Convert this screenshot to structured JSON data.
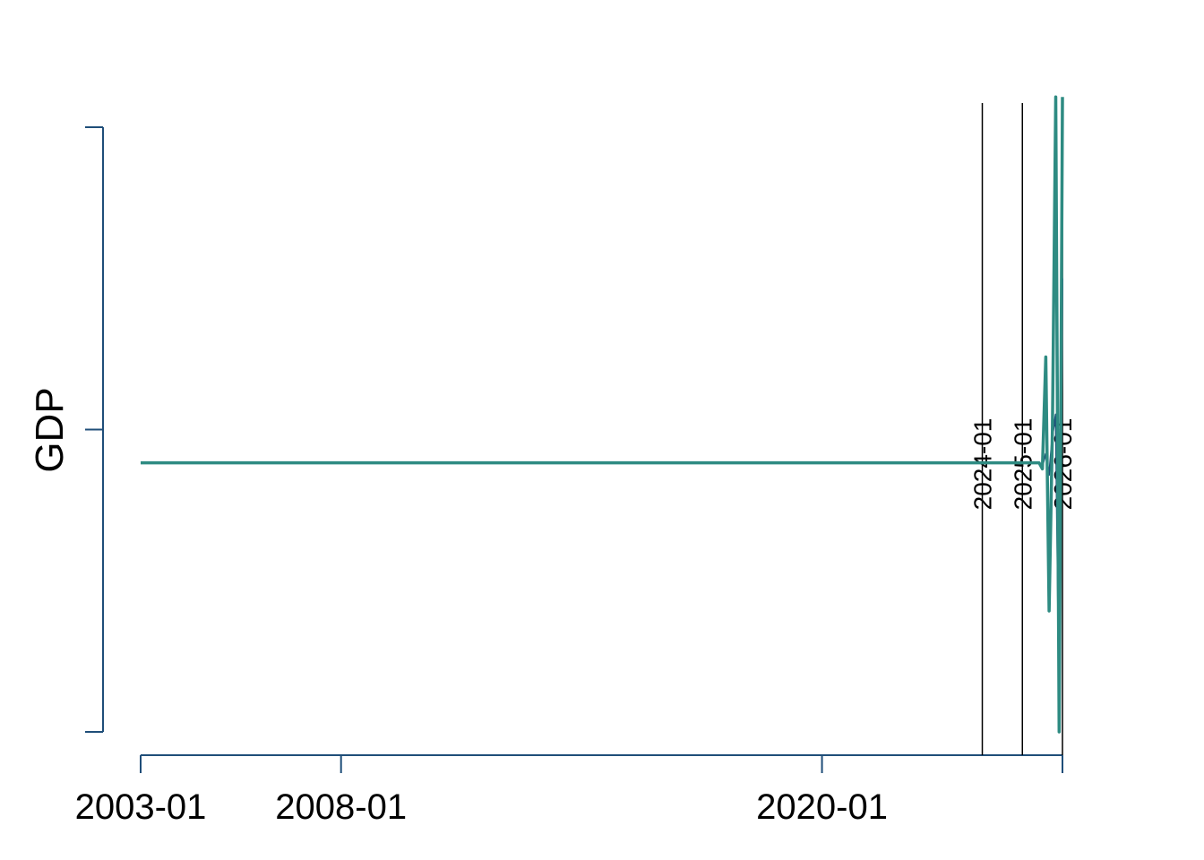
{
  "chart_data": {
    "type": "line",
    "title": "",
    "xlabel": "",
    "ylabel": "GDP",
    "x_axis_type": "date",
    "xlim": [
      "2003-01",
      "2026-01"
    ],
    "x_ticks": [
      "2003-01",
      "2008-01",
      "2020-01",
      "2026-01"
    ],
    "x_tick_labels": [
      "2003-01",
      "2008-01",
      "2020-01"
    ],
    "y_ticks": [
      -1,
      0,
      1
    ],
    "y_tick_labels": [],
    "ylim": [
      -1,
      1
    ],
    "grid": false,
    "legend": "none",
    "axis_color": "#1f4e79",
    "vlines": [
      {
        "x": "2024-01",
        "label": "2024-01"
      },
      {
        "x": "2025-01",
        "label": "2025-01"
      },
      {
        "x": "2026-01",
        "label": "2026-01"
      }
    ],
    "series": [
      {
        "color": "#1f4e79",
        "line_width": 2,
        "x": [
          "2003-01",
          "2024-01",
          "2025-06",
          "2025-07",
          "2025-08",
          "2025-09",
          "2025-10",
          "2025-11",
          "2025-12",
          "2026-01"
        ],
        "y": [
          -0.11,
          -0.11,
          -0.11,
          -0.12,
          -0.08,
          -0.15,
          -0.02,
          0.05,
          -0.9,
          0.5
        ]
      },
      {
        "color": "#2e8b82",
        "line_width": 3.5,
        "x": [
          "2003-01",
          "2024-01",
          "2025-05",
          "2025-06",
          "2025-07",
          "2025-08",
          "2025-09",
          "2025-10",
          "2025-11",
          "2025-12",
          "2026-01"
        ],
        "y": [
          -0.11,
          -0.11,
          -0.11,
          -0.11,
          -0.13,
          0.24,
          -0.6,
          0.0,
          1.1,
          -1.0,
          1.1
        ]
      }
    ]
  }
}
